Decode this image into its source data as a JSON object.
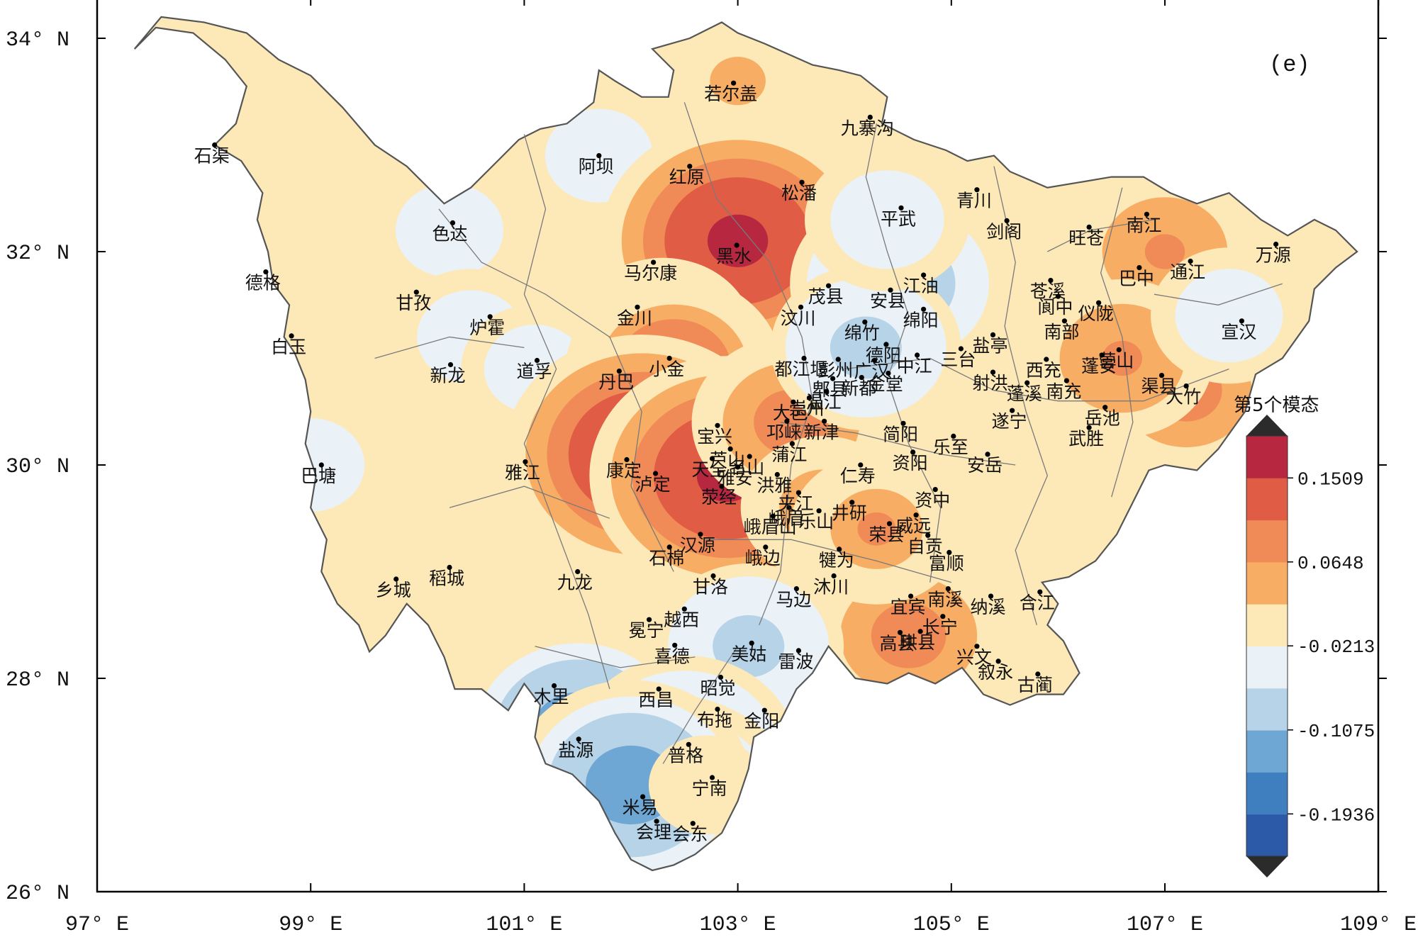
{
  "panel_label": "(e)",
  "axes": {
    "x_ticks": [
      "97° E",
      "99° E",
      "101° E",
      "103° E",
      "105° E",
      "107° E",
      "109° E"
    ],
    "y_ticks": [
      "34° N",
      "32° N",
      "30° N",
      "28° N",
      "26° N"
    ],
    "lon_range": [
      97,
      109
    ],
    "lat_range": [
      26,
      34.3
    ]
  },
  "colorbar": {
    "title": "第5个模态",
    "tick_labels": [
      "0.1509",
      "0.0648",
      "-0.0213",
      "-0.1075",
      "-0.1936"
    ],
    "tick_values": [
      0.1509,
      0.0648,
      -0.0213,
      -0.1075,
      -0.1936
    ],
    "min": -0.237,
    "max": 0.194,
    "colors": [
      "#2c5aa8",
      "#3f7fc0",
      "#6ea6d4",
      "#b7d3e8",
      "#eaf1f7",
      "#fde9b8",
      "#f7ad63",
      "#f08a57",
      "#e05c45",
      "#b72840"
    ]
  },
  "map": {
    "region_color": "#fde9b8",
    "region_border_color": "#555555",
    "city_dot_color": "#000000"
  },
  "blobs": [
    {
      "lon": 97.8,
      "lat": 33.2,
      "value": 0.03
    },
    {
      "lon": 101.7,
      "lat": 32.9,
      "value": -0.05
    },
    {
      "lon": 100.3,
      "lat": 32.2,
      "value": -0.05
    },
    {
      "lon": 100.5,
      "lat": 31.2,
      "value": -0.05
    },
    {
      "lon": 101.1,
      "lat": 30.9,
      "value": -0.04
    },
    {
      "lon": 99.0,
      "lat": 30.0,
      "value": -0.05
    },
    {
      "lon": 103.0,
      "lat": 33.6,
      "value": 0.04
    },
    {
      "lon": 103.3,
      "lat": 32.6,
      "value": 0.09
    },
    {
      "lon": 103.0,
      "lat": 32.1,
      "value": 0.19
    },
    {
      "lon": 102.3,
      "lat": 31.2,
      "value": 0.08
    },
    {
      "lon": 102.4,
      "lat": 30.9,
      "value": 0.12
    },
    {
      "lon": 102.1,
      "lat": 30.1,
      "value": 0.19
    },
    {
      "lon": 102.9,
      "lat": 29.9,
      "value": 0.19
    },
    {
      "lon": 103.5,
      "lat": 30.4,
      "value": 0.1
    },
    {
      "lon": 104.5,
      "lat": 31.7,
      "value": -0.12
    },
    {
      "lon": 104.2,
      "lat": 31.1,
      "value": -0.09
    },
    {
      "lon": 104.4,
      "lat": 32.3,
      "value": -0.06
    },
    {
      "lon": 107.0,
      "lat": 32.0,
      "value": 0.08
    },
    {
      "lon": 107.2,
      "lat": 30.7,
      "value": 0.09
    },
    {
      "lon": 106.6,
      "lat": 31.0,
      "value": 0.08
    },
    {
      "lon": 104.6,
      "lat": 28.4,
      "value": 0.1
    },
    {
      "lon": 103.8,
      "lat": 29.6,
      "value": 0.06
    },
    {
      "lon": 104.3,
      "lat": 29.4,
      "value": 0.07
    },
    {
      "lon": 107.6,
      "lat": 31.4,
      "value": -0.05
    },
    {
      "lon": 103.1,
      "lat": 28.3,
      "value": -0.09
    },
    {
      "lon": 101.5,
      "lat": 27.5,
      "value": -0.15
    },
    {
      "lon": 102.5,
      "lat": 27.3,
      "value": -0.13
    },
    {
      "lon": 102.3,
      "lat": 26.7,
      "value": -0.2
    },
    {
      "lon": 102.0,
      "lat": 27.0,
      "value": -0.15
    },
    {
      "lon": 102.7,
      "lat": 27.0,
      "value": 0.0
    }
  ],
  "cities": [
    {
      "name": "石渠",
      "lon": 98.1,
      "lat": 33.0
    },
    {
      "name": "若尔盖",
      "lon": 102.96,
      "lat": 33.58
    },
    {
      "name": "九寨沟",
      "lon": 104.24,
      "lat": 33.26
    },
    {
      "name": "阿坝",
      "lon": 101.7,
      "lat": 32.9
    },
    {
      "name": "红原",
      "lon": 102.55,
      "lat": 32.8
    },
    {
      "name": "松潘",
      "lon": 103.6,
      "lat": 32.65
    },
    {
      "name": "青川",
      "lon": 105.24,
      "lat": 32.58
    },
    {
      "name": "色达",
      "lon": 100.33,
      "lat": 32.27
    },
    {
      "name": "平武",
      "lon": 104.53,
      "lat": 32.41
    },
    {
      "name": "剑阁",
      "lon": 105.52,
      "lat": 32.29
    },
    {
      "name": "旺苍",
      "lon": 106.29,
      "lat": 32.23
    },
    {
      "name": "南江",
      "lon": 106.83,
      "lat": 32.35
    },
    {
      "name": "黑水",
      "lon": 102.99,
      "lat": 32.06
    },
    {
      "name": "万源",
      "lon": 108.04,
      "lat": 32.07
    },
    {
      "name": "德格",
      "lon": 98.58,
      "lat": 31.81
    },
    {
      "name": "马尔康",
      "lon": 102.21,
      "lat": 31.9
    },
    {
      "name": "茂县",
      "lon": 103.85,
      "lat": 31.68
    },
    {
      "name": "安县",
      "lon": 104.43,
      "lat": 31.64
    },
    {
      "name": "江油",
      "lon": 104.74,
      "lat": 31.78
    },
    {
      "name": "苍溪",
      "lon": 105.93,
      "lat": 31.73
    },
    {
      "name": "阆中",
      "lon": 106.0,
      "lat": 31.58
    },
    {
      "name": "巴中",
      "lon": 106.76,
      "lat": 31.85
    },
    {
      "name": "通江",
      "lon": 107.24,
      "lat": 31.91
    },
    {
      "name": "甘孜",
      "lon": 99.99,
      "lat": 31.62
    },
    {
      "name": "汶川",
      "lon": 103.59,
      "lat": 31.48
    },
    {
      "name": "绵竹",
      "lon": 104.19,
      "lat": 31.34
    },
    {
      "name": "绵阳",
      "lon": 104.74,
      "lat": 31.46
    },
    {
      "name": "仪陇",
      "lon": 106.38,
      "lat": 31.52
    },
    {
      "name": "盐亭",
      "lon": 105.39,
      "lat": 31.22
    },
    {
      "name": "金川",
      "lon": 102.06,
      "lat": 31.48
    },
    {
      "name": "德阳",
      "lon": 104.39,
      "lat": 31.13
    },
    {
      "name": "宣汉",
      "lon": 107.72,
      "lat": 31.35
    },
    {
      "name": "炉霍",
      "lon": 100.68,
      "lat": 31.39
    },
    {
      "name": "白玉",
      "lon": 98.82,
      "lat": 31.21
    },
    {
      "name": "都江堰",
      "lon": 103.62,
      "lat": 31.0
    },
    {
      "name": "彭州",
      "lon": 103.94,
      "lat": 30.99
    },
    {
      "name": "广汉",
      "lon": 104.28,
      "lat": 30.98
    },
    {
      "name": "中江",
      "lon": 104.68,
      "lat": 31.03
    },
    {
      "name": "三台",
      "lon": 105.09,
      "lat": 31.09
    },
    {
      "name": "南部",
      "lon": 106.06,
      "lat": 31.35
    },
    {
      "name": "营山",
      "lon": 106.57,
      "lat": 31.08
    },
    {
      "name": "渠县",
      "lon": 106.97,
      "lat": 30.84
    },
    {
      "name": "小金",
      "lon": 102.36,
      "lat": 31.0
    },
    {
      "name": "西充",
      "lon": 105.89,
      "lat": 30.99
    },
    {
      "name": "南充",
      "lon": 106.08,
      "lat": 30.79
    },
    {
      "name": "新龙",
      "lon": 100.31,
      "lat": 30.94
    },
    {
      "name": "道孚",
      "lon": 101.12,
      "lat": 30.98
    },
    {
      "name": "丹巴",
      "lon": 101.89,
      "lat": 30.88
    },
    {
      "name": "宝兴",
      "lon": 102.81,
      "lat": 30.37
    },
    {
      "name": "崇州",
      "lon": 103.67,
      "lat": 30.63
    },
    {
      "name": "郫县",
      "lon": 103.89,
      "lat": 30.81
    },
    {
      "name": "新都",
      "lon": 104.16,
      "lat": 30.82
    },
    {
      "name": "金堂",
      "lon": 104.41,
      "lat": 30.86
    },
    {
      "name": "射洪",
      "lon": 105.39,
      "lat": 30.87
    },
    {
      "name": "蓬溪",
      "lon": 105.71,
      "lat": 30.77
    },
    {
      "name": "蓬安",
      "lon": 106.41,
      "lat": 31.03
    },
    {
      "name": "大竹",
      "lon": 107.2,
      "lat": 30.74
    },
    {
      "name": "大邑",
      "lon": 103.52,
      "lat": 30.59
    },
    {
      "name": "温江",
      "lon": 103.83,
      "lat": 30.69
    },
    {
      "name": "芦山",
      "lon": 102.93,
      "lat": 30.15
    },
    {
      "name": "新津",
      "lon": 103.81,
      "lat": 30.41
    },
    {
      "name": "乐至",
      "lon": 105.02,
      "lat": 30.27
    },
    {
      "name": "遂宁",
      "lon": 105.57,
      "lat": 30.51
    },
    {
      "name": "武胜",
      "lon": 106.29,
      "lat": 30.35
    },
    {
      "name": "岳池",
      "lon": 106.44,
      "lat": 30.54
    },
    {
      "name": "名山",
      "lon": 103.11,
      "lat": 30.08
    },
    {
      "name": "邛崃",
      "lon": 103.46,
      "lat": 30.41
    },
    {
      "name": "简阳",
      "lon": 104.55,
      "lat": 30.39
    },
    {
      "name": "资阳",
      "lon": 104.64,
      "lat": 30.12
    },
    {
      "name": "康定",
      "lon": 101.96,
      "lat": 30.05
    },
    {
      "name": "天全",
      "lon": 102.76,
      "lat": 30.06
    },
    {
      "name": "雅安",
      "lon": 103.0,
      "lat": 29.98
    },
    {
      "name": "洪雅",
      "lon": 103.37,
      "lat": 29.91
    },
    {
      "name": "蒲江",
      "lon": 103.51,
      "lat": 30.2
    },
    {
      "name": "仁寿",
      "lon": 104.15,
      "lat": 30.0
    },
    {
      "name": "资中",
      "lon": 104.85,
      "lat": 29.77
    },
    {
      "name": "安岳",
      "lon": 105.34,
      "lat": 30.1
    },
    {
      "name": "巴塘",
      "lon": 99.1,
      "lat": 30.0
    },
    {
      "name": "雅江",
      "lon": 101.01,
      "lat": 30.03
    },
    {
      "name": "泸定",
      "lon": 102.23,
      "lat": 29.92
    },
    {
      "name": "荥经",
      "lon": 102.85,
      "lat": 29.8
    },
    {
      "name": "峨眉",
      "lon": 103.48,
      "lat": 29.6
    },
    {
      "name": "夹江",
      "lon": 103.57,
      "lat": 29.74
    },
    {
      "name": "井研",
      "lon": 104.07,
      "lat": 29.65
    },
    {
      "name": "威远",
      "lon": 104.67,
      "lat": 29.53
    },
    {
      "name": "荣县",
      "lon": 104.42,
      "lat": 29.45
    },
    {
      "name": "汉源",
      "lon": 102.65,
      "lat": 29.35
    },
    {
      "name": "峨眉山",
      "lon": 103.33,
      "lat": 29.52
    },
    {
      "name": "自贡",
      "lon": 104.78,
      "lat": 29.34
    },
    {
      "name": "石棉",
      "lon": 102.36,
      "lat": 29.23
    },
    {
      "name": "犍为",
      "lon": 103.95,
      "lat": 29.21
    },
    {
      "name": "富顺",
      "lon": 104.98,
      "lat": 29.18
    },
    {
      "name": "甘洛",
      "lon": 102.77,
      "lat": 28.96
    },
    {
      "name": "峨边",
      "lon": 103.26,
      "lat": 29.23
    },
    {
      "name": "乐山",
      "lon": 103.76,
      "lat": 29.57
    },
    {
      "name": "宜宾",
      "lon": 104.62,
      "lat": 28.77
    },
    {
      "name": "南溪",
      "lon": 104.97,
      "lat": 28.84
    },
    {
      "name": "合江",
      "lon": 105.83,
      "lat": 28.81
    },
    {
      "name": "乡城",
      "lon": 99.8,
      "lat": 28.93
    },
    {
      "name": "稻城",
      "lon": 100.3,
      "lat": 29.04
    },
    {
      "name": "九龙",
      "lon": 101.5,
      "lat": 29.0
    },
    {
      "name": "越西",
      "lon": 102.5,
      "lat": 28.65
    },
    {
      "name": "马边",
      "lon": 103.55,
      "lat": 28.84
    },
    {
      "name": "沐川",
      "lon": 103.9,
      "lat": 28.96
    },
    {
      "name": "纳溪",
      "lon": 105.37,
      "lat": 28.77
    },
    {
      "name": "冕宁",
      "lon": 102.17,
      "lat": 28.55
    },
    {
      "name": "美姑",
      "lon": 103.13,
      "lat": 28.33
    },
    {
      "name": "高县",
      "lon": 104.52,
      "lat": 28.43
    },
    {
      "name": "长宁",
      "lon": 104.92,
      "lat": 28.58
    },
    {
      "name": "兴文",
      "lon": 105.24,
      "lat": 28.3
    },
    {
      "name": "雷波",
      "lon": 103.57,
      "lat": 28.26
    },
    {
      "name": "喜德",
      "lon": 102.41,
      "lat": 28.31
    },
    {
      "name": "珙县",
      "lon": 104.71,
      "lat": 28.44
    },
    {
      "name": "叙永",
      "lon": 105.44,
      "lat": 28.16
    },
    {
      "name": "古蔺",
      "lon": 105.81,
      "lat": 28.04
    },
    {
      "name": "昭觉",
      "lon": 102.84,
      "lat": 28.01
    },
    {
      "name": "木里",
      "lon": 101.28,
      "lat": 27.93
    },
    {
      "name": "西昌",
      "lon": 102.26,
      "lat": 27.9
    },
    {
      "name": "布拖",
      "lon": 102.81,
      "lat": 27.71
    },
    {
      "name": "金阳",
      "lon": 103.25,
      "lat": 27.7
    },
    {
      "name": "盐源",
      "lon": 101.51,
      "lat": 27.43
    },
    {
      "name": "普格",
      "lon": 102.54,
      "lat": 27.38
    },
    {
      "name": "宁南",
      "lon": 102.76,
      "lat": 27.07
    },
    {
      "name": "米易",
      "lon": 102.11,
      "lat": 26.89
    },
    {
      "name": "会理",
      "lon": 102.24,
      "lat": 26.66
    },
    {
      "name": "会东",
      "lon": 102.58,
      "lat": 26.64
    }
  ],
  "label_offsets_note": "city labels placed next to dots"
}
